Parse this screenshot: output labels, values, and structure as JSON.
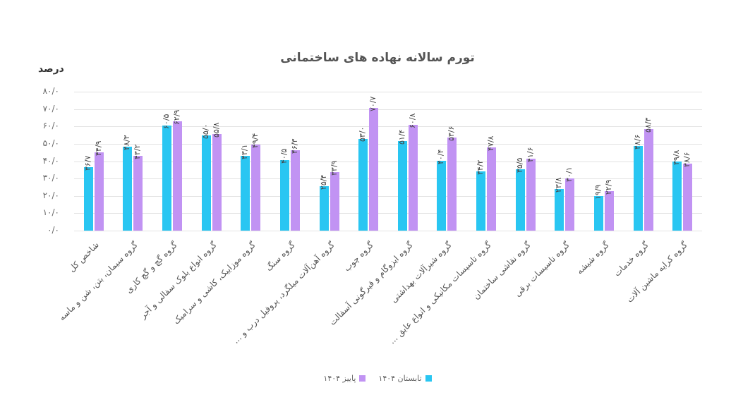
{
  "chart_data": {
    "type": "bar",
    "title": "تورم سالانه نهاده های ساختمانی",
    "xlabel": "",
    "ylabel": "درصد",
    "ylim": [
      0,
      80
    ],
    "yticks": [
      "۰/۰",
      "۱۰/۰",
      "۲۰/۰",
      "۳۰/۰",
      "۴۰/۰",
      "۵۰/۰",
      "۶۰/۰",
      "۷۰/۰",
      "۸۰/۰"
    ],
    "grid": true,
    "legend_position": "bottom",
    "categories": [
      "شاخص کل",
      "گروه سیمان، بتن، شن و ماسه",
      "گروه گچ و گچ کاری",
      "گروه انواع بلوک سفالی و آجر",
      "گروه موزاییک، کاشی و سرامیک",
      "گروه سنگ",
      "گروه آهن‌آلات میلگرد، پروفیل درب و ...",
      "گروه چوب",
      "گروه ایزوگام و قیرگونی آسفالت",
      "گروه شیرآلات بهداشتی",
      "گروه تاسیسات مکانیکی و انواع عایق ...",
      "گروه نقاشی ساختمان",
      "گروه تاسیسات برقی",
      "گروه شیشه",
      "گروه خدمات",
      "گروه کرایه ماشین آلات"
    ],
    "series": [
      {
        "name": "تابستان ۱۴۰۴",
        "color": "#29c6f2",
        "values": [
          36.7,
          48.3,
          60.5,
          55.0,
          43.1,
          40.5,
          25.4,
          53.0,
          51.4,
          40.4,
          34.2,
          35.5,
          23.8,
          19.9,
          48.6,
          39.8
        ],
        "labels": [
          "۳۶/۷",
          "۴۸/۳",
          "۶۰/۵",
          "۵۵/۰",
          "۴۳/۱",
          "۴۰/۵",
          "۲۵/۴",
          "۵۳/۰",
          "۵۱/۴",
          "۴۰/۴",
          "۳۴/۲",
          "۳۵/۵",
          "۲۳/۸",
          "۱۹/۹",
          "۴۸/۶",
          "۳۹/۸"
        ]
      },
      {
        "name": "پاییز ۱۴۰۴",
        "color": "#c193f3",
        "values": [
          44.9,
          43.2,
          62.9,
          55.8,
          49.4,
          46.3,
          33.9,
          70.7,
          60.8,
          53.6,
          47.8,
          41.6,
          30.1,
          22.9,
          58.3,
          38.6
        ],
        "labels": [
          "۴۴/۹",
          "۴۳/۲",
          "۶۲/۹",
          "۵۵/۸",
          "۴۹/۴",
          "۴۶/۳",
          "۳۳/۹",
          "۷۰/۷",
          "۶۰/۸",
          "۵۳/۶",
          "۴۷/۸",
          "۴۱/۶",
          "۳۰/۱",
          "۲۲/۹",
          "۵۸/۳",
          "۳۸/۶"
        ]
      }
    ]
  },
  "legend": {
    "items": [
      {
        "label": "تابستان ۱۴۰۴",
        "color": "#29c6f2"
      },
      {
        "label": "پاییز ۱۴۰۴",
        "color": "#c193f3"
      }
    ]
  }
}
